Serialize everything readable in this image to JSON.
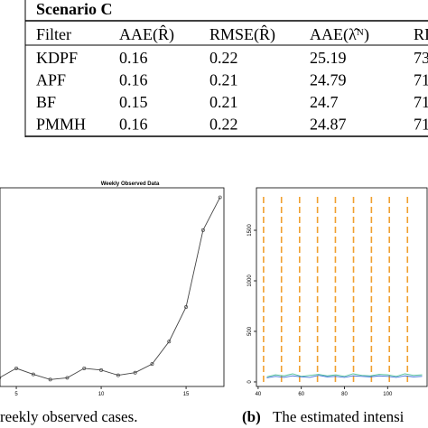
{
  "table": {
    "title": "Scenario C",
    "header": [
      "Filter",
      "AAE(R̂)",
      "RMSE(R̂)",
      "AAE(λ̂ᴺ)",
      "RI"
    ],
    "rows": [
      [
        "KDPF",
        "0.16",
        "0.22",
        "25.19",
        "73"
      ],
      [
        "APF",
        "0.16",
        "0.21",
        "24.79",
        "71"
      ],
      [
        "BF",
        "0.15",
        "0.21",
        "24.7",
        "71"
      ],
      [
        "PMMH",
        "0.16",
        "0.22",
        "24.87",
        "71"
      ]
    ]
  },
  "chart_data": [
    {
      "type": "line",
      "title": "Weekly Observed Data",
      "x": [
        4,
        5,
        6,
        7,
        8,
        9,
        10,
        11,
        12,
        13,
        14,
        15,
        16,
        17
      ],
      "series": [
        {
          "color": "#444444",
          "values": [
            10,
            21,
            14,
            8,
            10,
            21,
            19,
            13,
            16,
            26,
            52,
            92,
            181,
            219
          ]
        }
      ],
      "xlim": [
        4.04,
        17.23
      ],
      "ylim": [
        0,
        230
      ],
      "xticks": [
        5,
        10,
        15
      ]
    },
    {
      "type": "line",
      "x": [
        44,
        48,
        52,
        56,
        60,
        64,
        68,
        72,
        76,
        80,
        84,
        88,
        92,
        96,
        100,
        104,
        108,
        112,
        116
      ],
      "series": [
        {
          "color": "#4fbf9a",
          "values": [
            50,
            70,
            60,
            80,
            55,
            65,
            75,
            60,
            70,
            55,
            80,
            65,
            60,
            75,
            70,
            55,
            80,
            65,
            70
          ]
        },
        {
          "color": "#3a6fd8",
          "values": [
            40,
            55,
            45,
            60,
            50,
            45,
            65,
            50,
            55,
            45,
            60,
            55,
            50,
            60,
            55,
            45,
            60,
            50,
            55
          ]
        }
      ],
      "vlines": [
        42.5,
        50.8,
        59.2,
        67.5,
        75.8,
        84.2,
        92.5,
        100.8,
        109.2
      ],
      "vline_color": "#f0a030",
      "xlim": [
        39.2,
        118.3
      ],
      "ylim": [
        -45,
        1920
      ],
      "xticks": [
        40,
        60,
        80,
        100
      ],
      "yticks": [
        0,
        500,
        1000,
        1500
      ]
    }
  ],
  "captions": {
    "a": "reekly observed cases.",
    "b_label": "(b)",
    "b": "The estimated intensi"
  }
}
